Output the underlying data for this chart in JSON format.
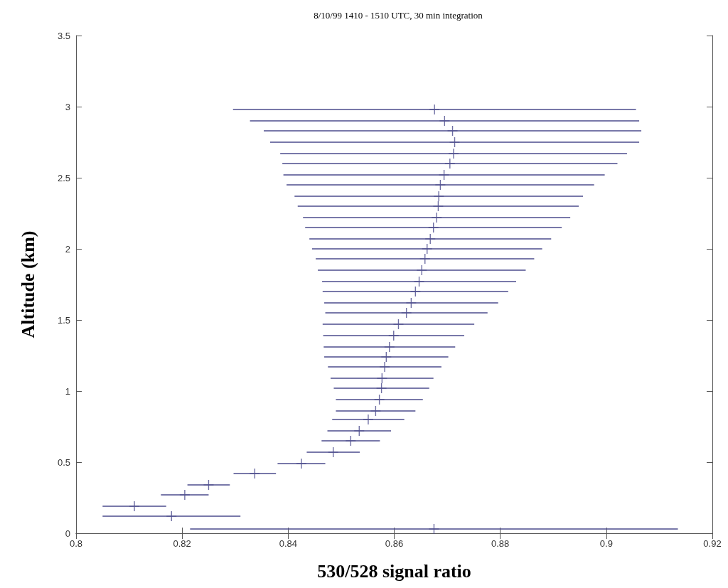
{
  "chart_data": {
    "type": "scatter",
    "title": "8/10/99 1410 - 1510 UTC, 30 min integration",
    "xlabel": "530/528 signal ratio",
    "ylabel": "Altitude (km)",
    "color": "#4b4b8c",
    "marker": "cross",
    "x": [
      0.8675,
      0.818,
      0.811,
      0.8205,
      0.825,
      0.8337,
      0.8425,
      0.8485,
      0.8518,
      0.8534,
      0.8551,
      0.8565,
      0.8572,
      0.8576,
      0.8577,
      0.8582,
      0.8585,
      0.8591,
      0.8599,
      0.8608,
      0.8623,
      0.8632,
      0.864,
      0.8647,
      0.8652,
      0.8658,
      0.8662,
      0.8668,
      0.8674,
      0.868,
      0.8683,
      0.8684,
      0.8687,
      0.8694,
      0.8705,
      0.8712,
      0.8714,
      0.871,
      0.8695,
      0.8676
    ],
    "values": [
      0.03,
      0.12,
      0.19,
      0.27,
      0.34,
      0.42,
      0.49,
      0.57,
      0.65,
      0.72,
      0.8,
      0.86,
      0.94,
      1.02,
      1.09,
      1.17,
      1.24,
      1.31,
      1.39,
      1.47,
      1.55,
      1.62,
      1.7,
      1.77,
      1.85,
      1.93,
      2.0,
      2.07,
      2.15,
      2.22,
      2.3,
      2.37,
      2.45,
      2.52,
      2.6,
      2.67,
      2.75,
      2.83,
      2.9,
      2.98
    ],
    "xerrors": [
      0.046,
      0.013,
      0.006,
      0.0045,
      0.004,
      0.004,
      0.0045,
      0.005,
      0.0055,
      0.006,
      0.0068,
      0.0075,
      0.0082,
      0.009,
      0.0097,
      0.0107,
      0.0117,
      0.0124,
      0.0133,
      0.0143,
      0.0153,
      0.0164,
      0.0175,
      0.0183,
      0.0196,
      0.0206,
      0.0217,
      0.0228,
      0.0242,
      0.0252,
      0.0265,
      0.0272,
      0.029,
      0.0303,
      0.0316,
      0.0327,
      0.0348,
      0.0356,
      0.0367,
      0.038
    ],
    "xlim": [
      0.8,
      0.92
    ],
    "ylim": [
      0,
      3.5
    ],
    "xticks": [
      0.8,
      0.82,
      0.84,
      0.86,
      0.88,
      0.9,
      0.92
    ],
    "yticks": [
      0,
      0.5,
      1,
      1.5,
      2,
      2.5,
      3,
      3.5
    ]
  }
}
